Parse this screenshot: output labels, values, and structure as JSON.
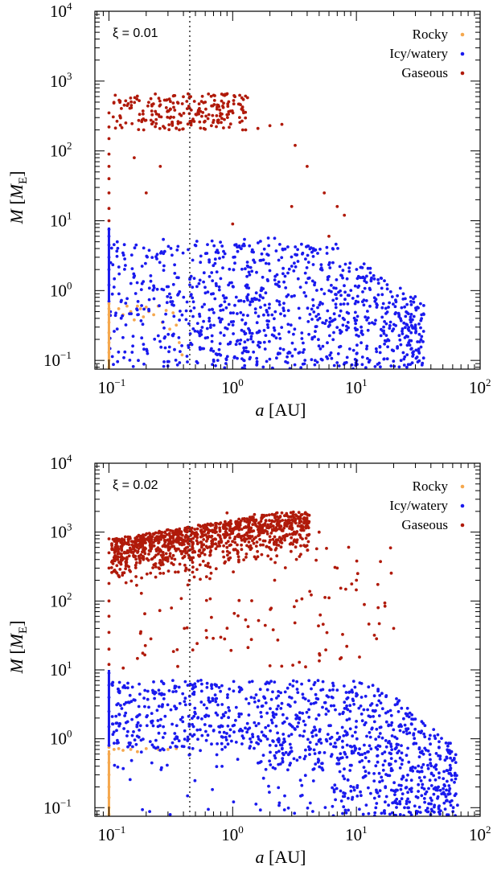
{
  "colors": {
    "rocky": "#f5a84e",
    "icy": "#1a1aee",
    "gaseous": "#b01a0a"
  },
  "chart_data": [
    {
      "type": "scatter",
      "annotation": "ξ = 0.01",
      "xlabel": "a [AU]",
      "ylabel": "M [M_E]",
      "xscale": "log",
      "yscale": "log",
      "xlim": [
        0.077,
        100
      ],
      "ylim": [
        0.075,
        10000
      ],
      "xticks": [
        "10",
        "10",
        "10",
        "10"
      ],
      "xtick_exponents": [
        "−1",
        "0",
        "1",
        "2"
      ],
      "yticks": [
        "10",
        "10",
        "10",
        "10",
        "10",
        "10"
      ],
      "ytick_exponents": [
        "−1",
        "0",
        "1",
        "2",
        "3",
        "4"
      ],
      "snow_line_au": 0.45,
      "legend": [
        "Rocky",
        "Icy/watery",
        "Gaseous"
      ],
      "legend_position": "top-right",
      "series": [
        {
          "name": "Rocky",
          "color": "#f5a84e",
          "points": [
            [
              0.1,
              0.08
            ],
            [
              0.1,
              0.1
            ],
            [
              0.1,
              0.13
            ],
            [
              0.1,
              0.18
            ],
            [
              0.1,
              0.25
            ],
            [
              0.1,
              0.35
            ],
            [
              0.1,
              0.45
            ],
            [
              0.1,
              0.55
            ],
            [
              0.1,
              0.65
            ],
            [
              0.12,
              0.55
            ],
            [
              0.13,
              0.45
            ],
            [
              0.14,
              0.6
            ],
            [
              0.15,
              0.5
            ],
            [
              0.16,
              0.38
            ],
            [
              0.17,
              0.6
            ],
            [
              0.18,
              0.55
            ],
            [
              0.19,
              0.42
            ],
            [
              0.2,
              0.58
            ],
            [
              0.21,
              0.5
            ],
            [
              0.23,
              0.45
            ],
            [
              0.25,
              0.6
            ],
            [
              0.27,
              0.35
            ],
            [
              0.29,
              0.52
            ],
            [
              0.31,
              0.28
            ],
            [
              0.33,
              0.48
            ],
            [
              0.35,
              0.32
            ],
            [
              0.37,
              0.18
            ],
            [
              0.39,
              0.12
            ]
          ]
        },
        {
          "name": "Icy/watery",
          "color": "#1a1aee",
          "points": [
            [
              0.1,
              0.7
            ],
            [
              0.1,
              1.2
            ],
            [
              0.1,
              2.0
            ],
            [
              0.1,
              3.0
            ],
            [
              0.1,
              4.5
            ],
            [
              0.1,
              6.0
            ],
            [
              0.1,
              7.5
            ]
          ]
        },
        {
          "name": "Gaseous",
          "color": "#b01a0a",
          "points": [
            [
              0.1,
              10
            ],
            [
              0.1,
              15
            ],
            [
              0.1,
              25
            ],
            [
              0.1,
              40
            ],
            [
              0.1,
              60
            ],
            [
              0.1,
              90
            ],
            [
              0.1,
              150
            ],
            [
              0.1,
              220
            ],
            [
              0.1,
              350
            ],
            [
              0.16,
              80
            ],
            [
              0.2,
              25
            ],
            [
              0.26,
              60
            ],
            [
              0.35,
              210
            ],
            [
              0.45,
              600
            ],
            [
              0.6,
              500
            ],
            [
              0.9,
              330
            ],
            [
              1.2,
              420
            ],
            [
              1.6,
              210
            ],
            [
              2.0,
              230
            ],
            [
              2.5,
              240
            ],
            [
              3.2,
              120
            ],
            [
              4.0,
              60
            ],
            [
              5.5,
              25
            ],
            [
              7.0,
              16
            ],
            [
              8.0,
              12
            ],
            [
              3.0,
              16
            ],
            [
              1.0,
              9
            ],
            [
              6.0,
              6
            ]
          ]
        }
      ]
    },
    {
      "type": "scatter",
      "annotation": "ξ = 0.02",
      "xlabel": "a [AU]",
      "ylabel": "M [M_E]",
      "xscale": "log",
      "yscale": "log",
      "xlim": [
        0.077,
        100
      ],
      "ylim": [
        0.075,
        10000
      ],
      "xticks": [
        "10",
        "10",
        "10",
        "10"
      ],
      "xtick_exponents": [
        "−1",
        "0",
        "1",
        "2"
      ],
      "yticks": [
        "10",
        "10",
        "10",
        "10",
        "10",
        "10"
      ],
      "ytick_exponents": [
        "−1",
        "0",
        "1",
        "2",
        "3",
        "4"
      ],
      "snow_line_au": 0.45,
      "legend": [
        "Rocky",
        "Icy/watery",
        "Gaseous"
      ],
      "legend_position": "top-right",
      "series": [
        {
          "name": "Rocky",
          "color": "#f5a84e",
          "points": [
            [
              0.1,
              0.08
            ],
            [
              0.1,
              0.1
            ],
            [
              0.1,
              0.14
            ],
            [
              0.1,
              0.2
            ],
            [
              0.1,
              0.3
            ],
            [
              0.1,
              0.45
            ],
            [
              0.1,
              0.6
            ],
            [
              0.1,
              0.75
            ],
            [
              0.11,
              0.7
            ],
            [
              0.12,
              0.72
            ],
            [
              0.13,
              0.68
            ],
            [
              0.15,
              0.7
            ],
            [
              0.17,
              0.65
            ],
            [
              0.2,
              0.72
            ],
            [
              0.25,
              0.7
            ],
            [
              0.3,
              0.7
            ],
            [
              0.35,
              0.72
            ]
          ]
        },
        {
          "name": "Icy/watery",
          "color": "#1a1aee",
          "points": [
            [
              0.1,
              0.8
            ],
            [
              0.1,
              1.5
            ],
            [
              0.1,
              2.5
            ],
            [
              0.1,
              4.0
            ],
            [
              0.1,
              6.0
            ],
            [
              0.1,
              9.0
            ]
          ]
        },
        {
          "name": "Gaseous",
          "color": "#b01a0a",
          "points": [
            [
              0.1,
              12
            ],
            [
              0.1,
              20
            ],
            [
              0.1,
              35
            ],
            [
              0.1,
              60
            ],
            [
              0.1,
              100
            ],
            [
              0.1,
              180
            ],
            [
              0.1,
              300
            ],
            [
              0.1,
              500
            ],
            [
              0.1,
              800
            ],
            [
              0.9,
              1900
            ],
            [
              1.5,
              1800
            ],
            [
              2.5,
              1900
            ],
            [
              3.5,
              1600
            ],
            [
              5.0,
              1000
            ],
            [
              7.0,
              300
            ],
            [
              10,
              200
            ],
            [
              15,
              80
            ],
            [
              20,
              40
            ]
          ]
        }
      ]
    }
  ]
}
